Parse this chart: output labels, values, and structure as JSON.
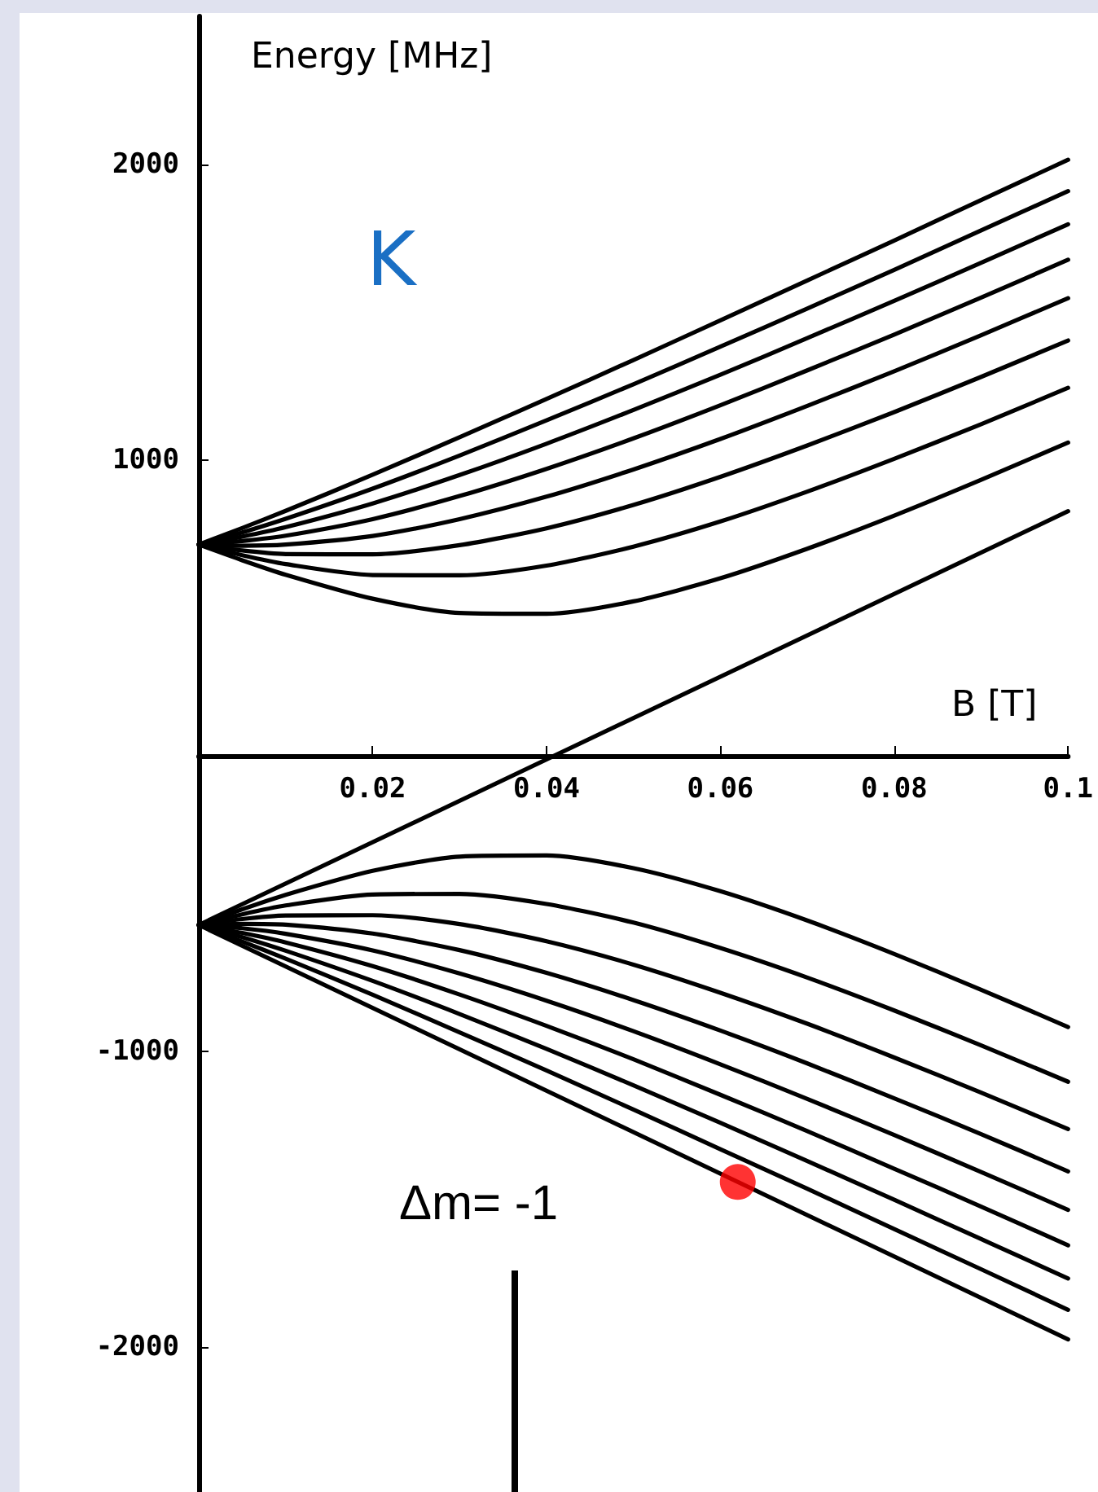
{
  "chart_data": {
    "type": "line",
    "xlabel": "B [T]",
    "ylabel": "Energy [MHz]",
    "annotations": [
      "K",
      "Δm= -1"
    ],
    "x": [
      0,
      0.005,
      0.01,
      0.02,
      0.03,
      0.04,
      0.05,
      0.06,
      0.07,
      0.08,
      0.09,
      0.1
    ],
    "xlim": [
      0,
      0.1
    ],
    "xticks": [
      0.02,
      0.04,
      0.06,
      0.08,
      0.1
    ],
    "ylim": [
      -2500,
      2500
    ],
    "yticks": [
      -2000,
      -1000,
      1000,
      2000
    ],
    "marker": "none",
    "line_style": "solid",
    "grid": false,
    "series": [
      {
        "color": "#000000",
        "values": [
          714,
          770,
          828,
          950,
          1077,
          1206,
          1338,
          1472,
          1607,
          1742,
          1879,
          2015
        ]
      },
      {
        "color": "#000000",
        "values": [
          714,
          755,
          801,
          903,
          1015,
          1134,
          1256,
          1383,
          1512,
          1643,
          1776,
          1909
        ]
      },
      {
        "color": "#000000",
        "values": [
          714,
          741,
          773,
          853,
          949,
          1055,
          1169,
          1288,
          1412,
          1538,
          1667,
          1797
        ]
      },
      {
        "color": "#000000",
        "values": [
          714,
          726,
          744,
          800,
          878,
          970,
          1073,
          1185,
          1303,
          1424,
          1549,
          1677
        ]
      },
      {
        "color": "#000000",
        "values": [
          714,
          710,
          714,
          743,
          800,
          876,
          968,
          1071,
          1183,
          1300,
          1422,
          1547
        ]
      },
      {
        "color": "#000000",
        "values": [
          714,
          694,
          682,
          681,
          712,
          769,
          848,
          943,
          1049,
          1162,
          1281,
          1404
        ]
      },
      {
        "color": "#000000",
        "values": [
          714,
          678,
          648,
          611,
          610,
          643,
          707,
          792,
          893,
          1004,
          1121,
          1244
        ]
      },
      {
        "color": "#000000",
        "values": [
          714,
          661,
          612,
          531,
          483,
          480,
          522,
          600,
          700,
          812,
          933,
          1059
        ]
      },
      {
        "color": "#000000",
        "x": [
          0,
          0.1
        ],
        "values": [
          -572,
          827
        ]
      },
      {
        "color": "#000000",
        "values": [
          -572,
          -519,
          -470,
          -389,
          -341,
          -337,
          -380,
          -458,
          -557,
          -670,
          -791,
          -917
        ]
      },
      {
        "color": "#000000",
        "values": [
          -572,
          -536,
          -506,
          -469,
          -467,
          -501,
          -564,
          -650,
          -750,
          -861,
          -979,
          -1102
        ]
      },
      {
        "color": "#000000",
        "values": [
          -572,
          -552,
          -540,
          -539,
          -569,
          -627,
          -706,
          -801,
          -906,
          -1020,
          -1139,
          -1262
        ]
      },
      {
        "color": "#000000",
        "values": [
          -572,
          -568,
          -571,
          -601,
          -657,
          -734,
          -826,
          -929,
          -1040,
          -1158,
          -1279,
          -1405
        ]
      },
      {
        "color": "#000000",
        "values": [
          -572,
          -583,
          -602,
          -658,
          -736,
          -828,
          -931,
          -1043,
          -1160,
          -1282,
          -1407,
          -1535
        ]
      },
      {
        "color": "#000000",
        "values": [
          -572,
          -599,
          -631,
          -711,
          -807,
          -913,
          -1026,
          -1146,
          -1269,
          -1396,
          -1524,
          -1655
        ]
      },
      {
        "color": "#000000",
        "values": [
          -572,
          -613,
          -659,
          -761,
          -873,
          -991,
          -1114,
          -1241,
          -1370,
          -1501,
          -1634,
          -1767
        ]
      },
      {
        "color": "#000000",
        "values": [
          -572,
          -628,
          -686,
          -808,
          -935,
          -1064,
          -1196,
          -1330,
          -1464,
          -1600,
          -1736,
          -1873
        ]
      },
      {
        "color": "#000000",
        "x": [
          0,
          0.1
        ],
        "values": [
          -572,
          -1973
        ]
      },
      {
        "type": "scatter",
        "marker": "circle",
        "color": "#ff0000",
        "x": [
          0.062
        ],
        "values": [
          -1441
        ]
      }
    ]
  }
}
